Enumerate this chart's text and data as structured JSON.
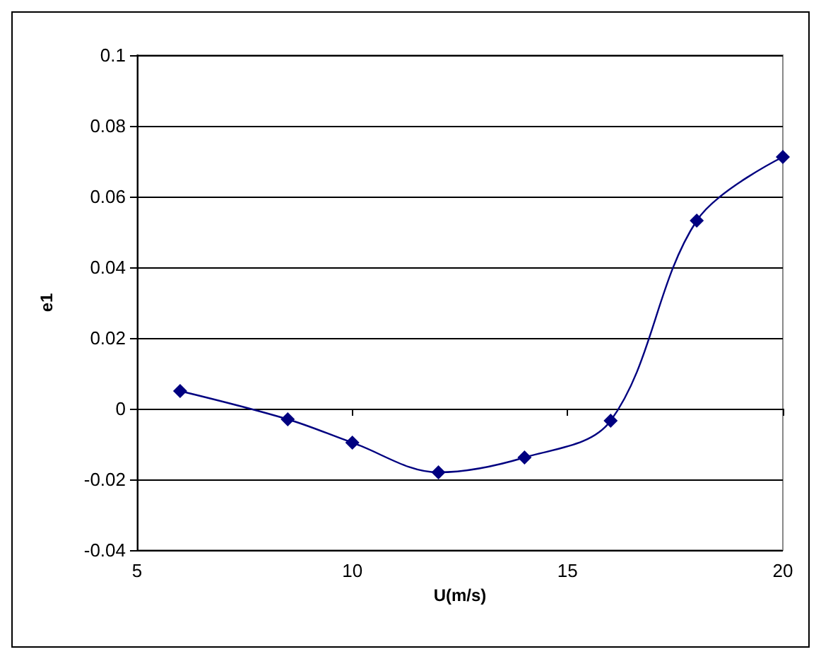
{
  "chart_data": {
    "type": "line",
    "xlabel": "U(m/s)",
    "ylabel": "e1",
    "x": [
      6,
      8.5,
      10,
      12,
      14,
      16,
      18,
      20
    ],
    "series": [
      {
        "color": "#000080",
        "values": [
          0.005,
          -0.003,
          -0.0096,
          -0.018,
          -0.0138,
          -0.0034,
          0.0532,
          0.0712
        ]
      }
    ],
    "xlim": [
      5,
      20
    ],
    "xticks": [
      5,
      10,
      15,
      20
    ],
    "ylim": [
      -0.04,
      0.1
    ],
    "yticks": [
      -0.04,
      -0.02,
      0,
      0.02,
      0.04,
      0.06,
      0.08,
      0.1
    ],
    "grid": "y",
    "marker": "diamond",
    "line_style": "solid"
  }
}
